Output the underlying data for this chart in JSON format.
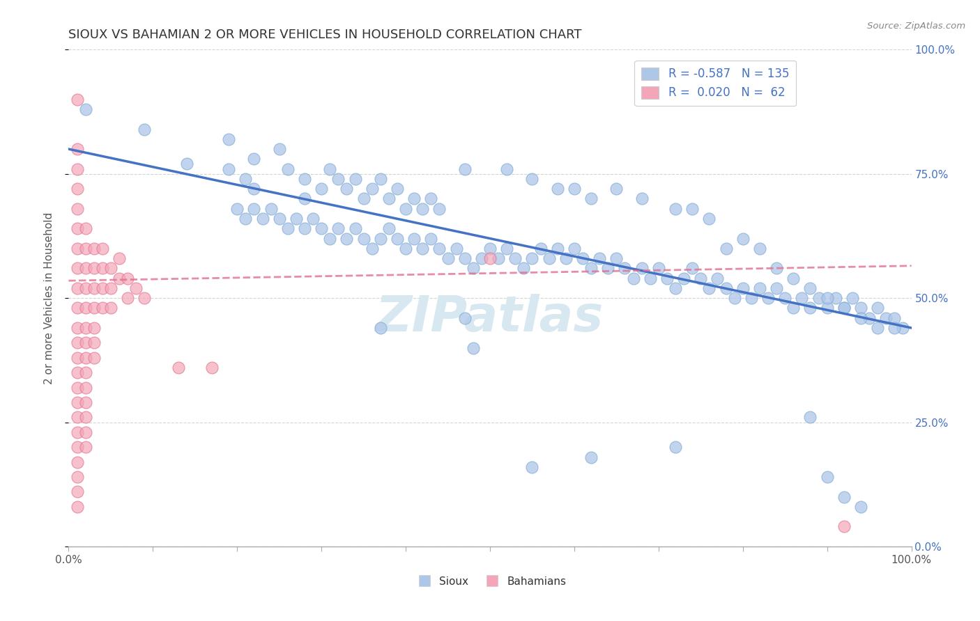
{
  "title": "SIOUX VS BAHAMIAN 2 OR MORE VEHICLES IN HOUSEHOLD CORRELATION CHART",
  "source": "Source: ZipAtlas.com",
  "ylabel": "2 or more Vehicles in Household",
  "xlim": [
    0.0,
    1.0
  ],
  "ylim": [
    0.0,
    1.0
  ],
  "background_color": "#ffffff",
  "grid_color": "#d0d0d0",
  "sioux_color": "#aec6e8",
  "sioux_edge_color": "#7fabd4",
  "sioux_line_color": "#4472c4",
  "bahamian_color": "#f4a6b8",
  "bahamian_edge_color": "#e07090",
  "bahamian_line_color": "#e07090",
  "watermark": "ZIPatlas",
  "watermark_color": "#d8e8f0",
  "sioux_points": [
    [
      0.02,
      0.88
    ],
    [
      0.09,
      0.84
    ],
    [
      0.14,
      0.77
    ],
    [
      0.19,
      0.76
    ],
    [
      0.19,
      0.82
    ],
    [
      0.21,
      0.74
    ],
    [
      0.22,
      0.78
    ],
    [
      0.22,
      0.72
    ],
    [
      0.25,
      0.8
    ],
    [
      0.26,
      0.76
    ],
    [
      0.28,
      0.74
    ],
    [
      0.28,
      0.7
    ],
    [
      0.3,
      0.72
    ],
    [
      0.31,
      0.76
    ],
    [
      0.32,
      0.74
    ],
    [
      0.33,
      0.72
    ],
    [
      0.34,
      0.74
    ],
    [
      0.35,
      0.7
    ],
    [
      0.36,
      0.72
    ],
    [
      0.37,
      0.74
    ],
    [
      0.38,
      0.7
    ],
    [
      0.39,
      0.72
    ],
    [
      0.4,
      0.68
    ],
    [
      0.41,
      0.7
    ],
    [
      0.42,
      0.68
    ],
    [
      0.43,
      0.7
    ],
    [
      0.44,
      0.68
    ],
    [
      0.2,
      0.68
    ],
    [
      0.21,
      0.66
    ],
    [
      0.22,
      0.68
    ],
    [
      0.23,
      0.66
    ],
    [
      0.24,
      0.68
    ],
    [
      0.25,
      0.66
    ],
    [
      0.26,
      0.64
    ],
    [
      0.27,
      0.66
    ],
    [
      0.28,
      0.64
    ],
    [
      0.29,
      0.66
    ],
    [
      0.3,
      0.64
    ],
    [
      0.31,
      0.62
    ],
    [
      0.32,
      0.64
    ],
    [
      0.33,
      0.62
    ],
    [
      0.34,
      0.64
    ],
    [
      0.35,
      0.62
    ],
    [
      0.36,
      0.6
    ],
    [
      0.37,
      0.62
    ],
    [
      0.38,
      0.64
    ],
    [
      0.39,
      0.62
    ],
    [
      0.4,
      0.6
    ],
    [
      0.41,
      0.62
    ],
    [
      0.42,
      0.6
    ],
    [
      0.43,
      0.62
    ],
    [
      0.44,
      0.6
    ],
    [
      0.45,
      0.58
    ],
    [
      0.46,
      0.6
    ],
    [
      0.47,
      0.58
    ],
    [
      0.48,
      0.56
    ],
    [
      0.49,
      0.58
    ],
    [
      0.5,
      0.6
    ],
    [
      0.51,
      0.58
    ],
    [
      0.52,
      0.6
    ],
    [
      0.53,
      0.58
    ],
    [
      0.54,
      0.56
    ],
    [
      0.55,
      0.58
    ],
    [
      0.56,
      0.6
    ],
    [
      0.57,
      0.58
    ],
    [
      0.58,
      0.6
    ],
    [
      0.59,
      0.58
    ],
    [
      0.6,
      0.6
    ],
    [
      0.61,
      0.58
    ],
    [
      0.62,
      0.56
    ],
    [
      0.63,
      0.58
    ],
    [
      0.64,
      0.56
    ],
    [
      0.65,
      0.58
    ],
    [
      0.66,
      0.56
    ],
    [
      0.67,
      0.54
    ],
    [
      0.68,
      0.56
    ],
    [
      0.69,
      0.54
    ],
    [
      0.7,
      0.56
    ],
    [
      0.71,
      0.54
    ],
    [
      0.72,
      0.52
    ],
    [
      0.73,
      0.54
    ],
    [
      0.74,
      0.56
    ],
    [
      0.75,
      0.54
    ],
    [
      0.76,
      0.52
    ],
    [
      0.77,
      0.54
    ],
    [
      0.78,
      0.52
    ],
    [
      0.79,
      0.5
    ],
    [
      0.8,
      0.52
    ],
    [
      0.81,
      0.5
    ],
    [
      0.82,
      0.52
    ],
    [
      0.83,
      0.5
    ],
    [
      0.84,
      0.52
    ],
    [
      0.85,
      0.5
    ],
    [
      0.86,
      0.48
    ],
    [
      0.87,
      0.5
    ],
    [
      0.88,
      0.48
    ],
    [
      0.89,
      0.5
    ],
    [
      0.9,
      0.48
    ],
    [
      0.91,
      0.5
    ],
    [
      0.92,
      0.48
    ],
    [
      0.93,
      0.5
    ],
    [
      0.94,
      0.48
    ],
    [
      0.95,
      0.46
    ],
    [
      0.96,
      0.48
    ],
    [
      0.97,
      0.46
    ],
    [
      0.98,
      0.46
    ],
    [
      0.99,
      0.44
    ],
    [
      0.47,
      0.76
    ],
    [
      0.52,
      0.76
    ],
    [
      0.55,
      0.74
    ],
    [
      0.58,
      0.72
    ],
    [
      0.6,
      0.72
    ],
    [
      0.62,
      0.7
    ],
    [
      0.65,
      0.72
    ],
    [
      0.68,
      0.7
    ],
    [
      0.72,
      0.68
    ],
    [
      0.74,
      0.68
    ],
    [
      0.76,
      0.66
    ],
    [
      0.78,
      0.6
    ],
    [
      0.8,
      0.62
    ],
    [
      0.82,
      0.6
    ],
    [
      0.84,
      0.56
    ],
    [
      0.86,
      0.54
    ],
    [
      0.88,
      0.52
    ],
    [
      0.9,
      0.5
    ],
    [
      0.92,
      0.48
    ],
    [
      0.94,
      0.46
    ],
    [
      0.96,
      0.44
    ],
    [
      0.98,
      0.44
    ],
    [
      0.47,
      0.46
    ],
    [
      0.48,
      0.4
    ],
    [
      0.55,
      0.16
    ],
    [
      0.62,
      0.18
    ],
    [
      0.72,
      0.2
    ],
    [
      0.88,
      0.26
    ],
    [
      0.9,
      0.14
    ],
    [
      0.92,
      0.1
    ],
    [
      0.94,
      0.08
    ],
    [
      0.37,
      0.44
    ]
  ],
  "bahamian_points": [
    [
      0.01,
      0.9
    ],
    [
      0.01,
      0.8
    ],
    [
      0.01,
      0.76
    ],
    [
      0.01,
      0.72
    ],
    [
      0.01,
      0.68
    ],
    [
      0.01,
      0.64
    ],
    [
      0.01,
      0.6
    ],
    [
      0.01,
      0.56
    ],
    [
      0.01,
      0.52
    ],
    [
      0.01,
      0.48
    ],
    [
      0.01,
      0.44
    ],
    [
      0.01,
      0.41
    ],
    [
      0.01,
      0.38
    ],
    [
      0.01,
      0.35
    ],
    [
      0.01,
      0.32
    ],
    [
      0.01,
      0.29
    ],
    [
      0.01,
      0.26
    ],
    [
      0.01,
      0.23
    ],
    [
      0.01,
      0.2
    ],
    [
      0.01,
      0.17
    ],
    [
      0.01,
      0.14
    ],
    [
      0.01,
      0.11
    ],
    [
      0.01,
      0.08
    ],
    [
      0.02,
      0.64
    ],
    [
      0.02,
      0.6
    ],
    [
      0.02,
      0.56
    ],
    [
      0.02,
      0.52
    ],
    [
      0.02,
      0.48
    ],
    [
      0.02,
      0.44
    ],
    [
      0.02,
      0.41
    ],
    [
      0.02,
      0.38
    ],
    [
      0.02,
      0.35
    ],
    [
      0.02,
      0.32
    ],
    [
      0.02,
      0.29
    ],
    [
      0.02,
      0.26
    ],
    [
      0.02,
      0.23
    ],
    [
      0.02,
      0.2
    ],
    [
      0.03,
      0.6
    ],
    [
      0.03,
      0.56
    ],
    [
      0.03,
      0.52
    ],
    [
      0.03,
      0.48
    ],
    [
      0.03,
      0.44
    ],
    [
      0.03,
      0.41
    ],
    [
      0.03,
      0.38
    ],
    [
      0.04,
      0.6
    ],
    [
      0.04,
      0.56
    ],
    [
      0.04,
      0.52
    ],
    [
      0.04,
      0.48
    ],
    [
      0.05,
      0.56
    ],
    [
      0.05,
      0.52
    ],
    [
      0.05,
      0.48
    ],
    [
      0.06,
      0.58
    ],
    [
      0.06,
      0.54
    ],
    [
      0.07,
      0.54
    ],
    [
      0.07,
      0.5
    ],
    [
      0.08,
      0.52
    ],
    [
      0.09,
      0.5
    ],
    [
      0.13,
      0.36
    ],
    [
      0.17,
      0.36
    ],
    [
      0.5,
      0.58
    ],
    [
      0.92,
      0.04
    ]
  ],
  "sioux_line": [
    0.0,
    0.8,
    1.0,
    0.44
  ],
  "bahamian_line": [
    0.0,
    0.535,
    1.0,
    0.565
  ]
}
